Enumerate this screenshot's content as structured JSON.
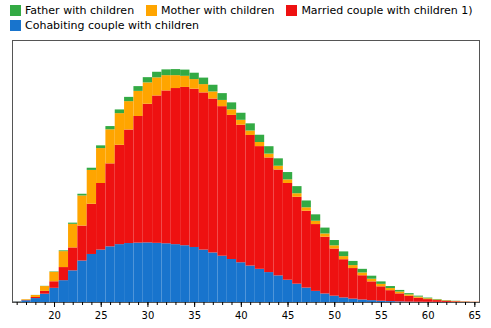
{
  "chart_data": {
    "type": "bar",
    "stacked": true,
    "x": [
      16,
      17,
      18,
      19,
      20,
      21,
      22,
      23,
      24,
      25,
      26,
      27,
      28,
      29,
      30,
      31,
      32,
      33,
      34,
      35,
      36,
      37,
      38,
      39,
      40,
      41,
      42,
      43,
      44,
      45,
      46,
      47,
      48,
      49,
      50,
      51,
      52,
      53,
      54,
      55,
      56,
      57,
      58,
      59,
      60,
      61,
      62,
      63,
      64,
      65
    ],
    "series": [
      {
        "name": "Cohabiting couple with children",
        "color": "#1874CD",
        "values": [
          30,
          80,
          180,
          380,
          650,
          1000,
          1450,
          1900,
          2200,
          2400,
          2550,
          2650,
          2700,
          2720,
          2730,
          2710,
          2690,
          2650,
          2600,
          2520,
          2400,
          2270,
          2120,
          1970,
          1820,
          1670,
          1520,
          1370,
          1220,
          1020,
          840,
          660,
          510,
          390,
          290,
          210,
          155,
          115,
          85,
          58,
          42,
          27,
          17,
          11,
          8,
          6,
          4,
          3,
          2,
          2
        ]
      },
      {
        "name": "Married couple with children 1)",
        "color": "#EE1111",
        "values": [
          5,
          15,
          50,
          130,
          300,
          600,
          1050,
          1600,
          2300,
          3050,
          3800,
          4550,
          5200,
          5800,
          6350,
          6750,
          7000,
          7150,
          7250,
          7250,
          7200,
          7050,
          6850,
          6600,
          6300,
          5980,
          5620,
          5250,
          4850,
          4430,
          3980,
          3520,
          3060,
          2600,
          2160,
          1750,
          1400,
          1110,
          860,
          660,
          500,
          370,
          265,
          185,
          125,
          82,
          52,
          32,
          17,
          9
        ]
      },
      {
        "name": "Mother with children",
        "color": "#FFA500",
        "values": [
          10,
          30,
          90,
          220,
          430,
          730,
          1080,
          1380,
          1550,
          1600,
          1560,
          1450,
          1300,
          1150,
          980,
          830,
          700,
          590,
          510,
          440,
          380,
          325,
          285,
          255,
          225,
          205,
          188,
          178,
          172,
          167,
          162,
          158,
          153,
          150,
          147,
          142,
          136,
          130,
          122,
          113,
          97,
          83,
          67,
          52,
          39,
          29,
          21,
          15,
          10,
          6
        ]
      },
      {
        "name": "Father with children",
        "color": "#33AA44",
        "values": [
          1,
          2,
          5,
          10,
          20,
          35,
          55,
          78,
          100,
          125,
          148,
          170,
          195,
          218,
          238,
          255,
          265,
          278,
          285,
          292,
          298,
          305,
          312,
          318,
          323,
          328,
          333,
          337,
          338,
          335,
          325,
          312,
          292,
          268,
          242,
          216,
          190,
          164,
          138,
          113,
          92,
          73,
          57,
          43,
          31,
          21,
          14,
          9,
          5,
          2
        ]
      }
    ],
    "xlim": [
      15.5,
      65.5
    ],
    "xticks": [
      20,
      25,
      30,
      35,
      40,
      45,
      50,
      55,
      60,
      65
    ],
    "ylim": [
      0,
      12000
    ],
    "yticks": [],
    "grid": false,
    "legend": "upper left",
    "tick_labels": "x"
  }
}
